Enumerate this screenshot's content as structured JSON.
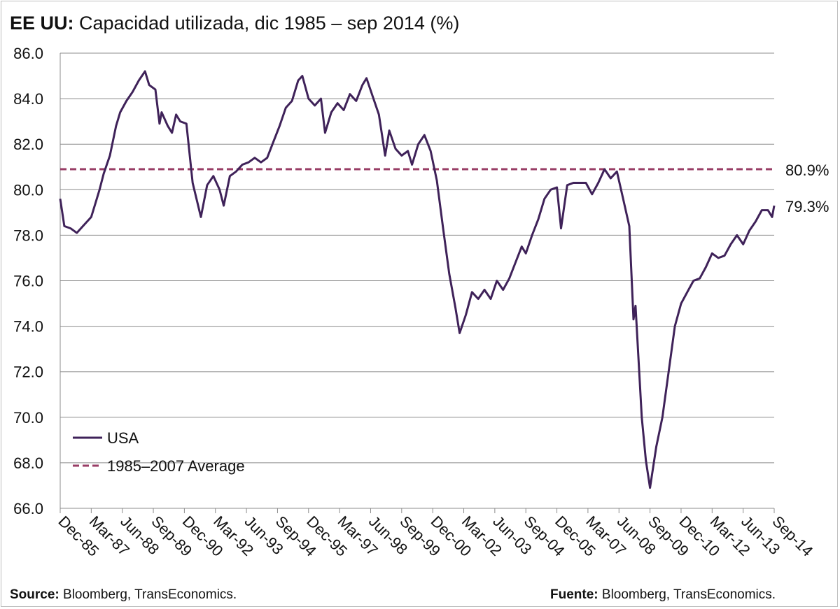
{
  "title": {
    "bold": "EE UU:",
    "rest": "Capacidad utilizada, dic 1985 – sep 2014 (%)"
  },
  "footer": {
    "left_label": "Source:",
    "left_text": "Bloomberg, TransEconomics.",
    "right_label": "Fuente:",
    "right_text": "Bloomberg, TransEconomics."
  },
  "chart_data": {
    "type": "line",
    "title": "Capacidad utilizada, dic 1985 – sep 2014 (%)",
    "xlabel": "",
    "ylabel": "",
    "ylim": [
      66,
      86
    ],
    "yticks": [
      "66.0",
      "68.0",
      "70.0",
      "72.0",
      "74.0",
      "76.0",
      "78.0",
      "80.0",
      "82.0",
      "84.0",
      "86.0"
    ],
    "xticks": [
      "Dec-85",
      "Mar-87",
      "Jun-88",
      "Sep-89",
      "Dec-90",
      "Mar-92",
      "Jun-93",
      "Sep-94",
      "Dec-95",
      "Mar-97",
      "Jun-98",
      "Sep-99",
      "Dec-00",
      "Mar-02",
      "Jun-03",
      "Sep-04",
      "Dec-05",
      "Mar-07",
      "Jun-08",
      "Sep-09",
      "Dec-10",
      "Mar-12",
      "Jun-13",
      "Sep-14"
    ],
    "x_start": "1985-12",
    "x_end": "2014-09",
    "grid": true,
    "legend_position": "bottom-left",
    "colors": {
      "usa": "#3f2259",
      "average": "#983d65"
    },
    "series": [
      {
        "name": "USA",
        "style": "solid",
        "points": [
          [
            "1985-12",
            79.6
          ],
          [
            "1986-02",
            78.4
          ],
          [
            "1986-05",
            78.3
          ],
          [
            "1986-08",
            78.1
          ],
          [
            "1986-11",
            78.4
          ],
          [
            "1987-03",
            78.8
          ],
          [
            "1987-05",
            79.4
          ],
          [
            "1987-07",
            80.0
          ],
          [
            "1987-09",
            80.7
          ],
          [
            "1987-12",
            81.5
          ],
          [
            "1988-03",
            82.8
          ],
          [
            "1988-05",
            83.4
          ],
          [
            "1988-08",
            83.9
          ],
          [
            "1988-11",
            84.3
          ],
          [
            "1989-02",
            84.8
          ],
          [
            "1989-05",
            85.2
          ],
          [
            "1989-07",
            84.6
          ],
          [
            "1989-10",
            84.4
          ],
          [
            "1989-12",
            82.9
          ],
          [
            "1990-01",
            83.4
          ],
          [
            "1990-04",
            82.8
          ],
          [
            "1990-06",
            82.5
          ],
          [
            "1990-08",
            83.3
          ],
          [
            "1990-10",
            83.0
          ],
          [
            "1991-01",
            82.9
          ],
          [
            "1991-04",
            80.3
          ],
          [
            "1991-08",
            78.8
          ],
          [
            "1991-11",
            80.2
          ],
          [
            "1992-02",
            80.6
          ],
          [
            "1992-05",
            80.0
          ],
          [
            "1992-07",
            79.3
          ],
          [
            "1992-10",
            80.6
          ],
          [
            "1993-01",
            80.8
          ],
          [
            "1993-04",
            81.1
          ],
          [
            "1993-07",
            81.2
          ],
          [
            "1993-10",
            81.4
          ],
          [
            "1994-01",
            81.2
          ],
          [
            "1994-04",
            81.4
          ],
          [
            "1994-07",
            82.1
          ],
          [
            "1994-10",
            82.8
          ],
          [
            "1995-01",
            83.6
          ],
          [
            "1995-04",
            83.9
          ],
          [
            "1995-07",
            84.8
          ],
          [
            "1995-09",
            85.0
          ],
          [
            "1995-12",
            84.0
          ],
          [
            "1996-03",
            83.7
          ],
          [
            "1996-06",
            84.0
          ],
          [
            "1996-08",
            82.5
          ],
          [
            "1996-11",
            83.4
          ],
          [
            "1997-02",
            83.8
          ],
          [
            "1997-05",
            83.5
          ],
          [
            "1997-08",
            84.2
          ],
          [
            "1997-11",
            83.9
          ],
          [
            "1998-02",
            84.6
          ],
          [
            "1998-04",
            84.9
          ],
          [
            "1998-07",
            84.1
          ],
          [
            "1998-10",
            83.3
          ],
          [
            "1999-01",
            81.5
          ],
          [
            "1999-03",
            82.6
          ],
          [
            "1999-06",
            81.8
          ],
          [
            "1999-09",
            81.5
          ],
          [
            "1999-12",
            81.7
          ],
          [
            "2000-02",
            81.1
          ],
          [
            "2000-05",
            82.0
          ],
          [
            "2000-08",
            82.4
          ],
          [
            "2000-11",
            81.7
          ],
          [
            "2001-02",
            80.4
          ],
          [
            "2001-05",
            78.3
          ],
          [
            "2001-08",
            76.3
          ],
          [
            "2001-11",
            74.8
          ],
          [
            "2002-01",
            73.7
          ],
          [
            "2002-04",
            74.5
          ],
          [
            "2002-07",
            75.5
          ],
          [
            "2002-10",
            75.2
          ],
          [
            "2003-01",
            75.6
          ],
          [
            "2003-04",
            75.2
          ],
          [
            "2003-07",
            76.0
          ],
          [
            "2003-10",
            75.6
          ],
          [
            "2004-01",
            76.1
          ],
          [
            "2004-04",
            76.8
          ],
          [
            "2004-07",
            77.5
          ],
          [
            "2004-09",
            77.2
          ],
          [
            "2004-12",
            78.0
          ],
          [
            "2005-03",
            78.7
          ],
          [
            "2005-06",
            79.6
          ],
          [
            "2005-09",
            80.0
          ],
          [
            "2005-12",
            80.1
          ],
          [
            "2006-02",
            78.3
          ],
          [
            "2006-05",
            80.2
          ],
          [
            "2006-08",
            80.3
          ],
          [
            "2006-11",
            80.3
          ],
          [
            "2007-02",
            80.3
          ],
          [
            "2007-05",
            79.8
          ],
          [
            "2007-08",
            80.3
          ],
          [
            "2007-11",
            80.9
          ],
          [
            "2008-02",
            80.5
          ],
          [
            "2008-05",
            80.8
          ],
          [
            "2008-08",
            79.6
          ],
          [
            "2008-11",
            78.4
          ],
          [
            "2009-01",
            74.3
          ],
          [
            "2009-02",
            74.9
          ],
          [
            "2009-05",
            70.0
          ],
          [
            "2009-07",
            68.1
          ],
          [
            "2009-09",
            66.9
          ],
          [
            "2009-12",
            68.7
          ],
          [
            "2010-03",
            70.0
          ],
          [
            "2010-06",
            72.0
          ],
          [
            "2010-09",
            74.0
          ],
          [
            "2010-12",
            75.0
          ],
          [
            "2011-03",
            75.5
          ],
          [
            "2011-06",
            76.0
          ],
          [
            "2011-09",
            76.1
          ],
          [
            "2011-12",
            76.6
          ],
          [
            "2012-03",
            77.2
          ],
          [
            "2012-06",
            77.0
          ],
          [
            "2012-09",
            77.1
          ],
          [
            "2012-12",
            77.6
          ],
          [
            "2013-03",
            78.0
          ],
          [
            "2013-06",
            77.6
          ],
          [
            "2013-09",
            78.2
          ],
          [
            "2013-12",
            78.6
          ],
          [
            "2014-03",
            79.1
          ],
          [
            "2014-06",
            79.1
          ],
          [
            "2014-08",
            78.8
          ],
          [
            "2014-09",
            79.3
          ]
        ]
      },
      {
        "name": "1985–2007 Average",
        "style": "dashed",
        "value": 80.9
      }
    ],
    "annotations": [
      {
        "text": "80.9%",
        "y": 80.9
      },
      {
        "text": "79.3%",
        "y": 79.3
      }
    ]
  }
}
